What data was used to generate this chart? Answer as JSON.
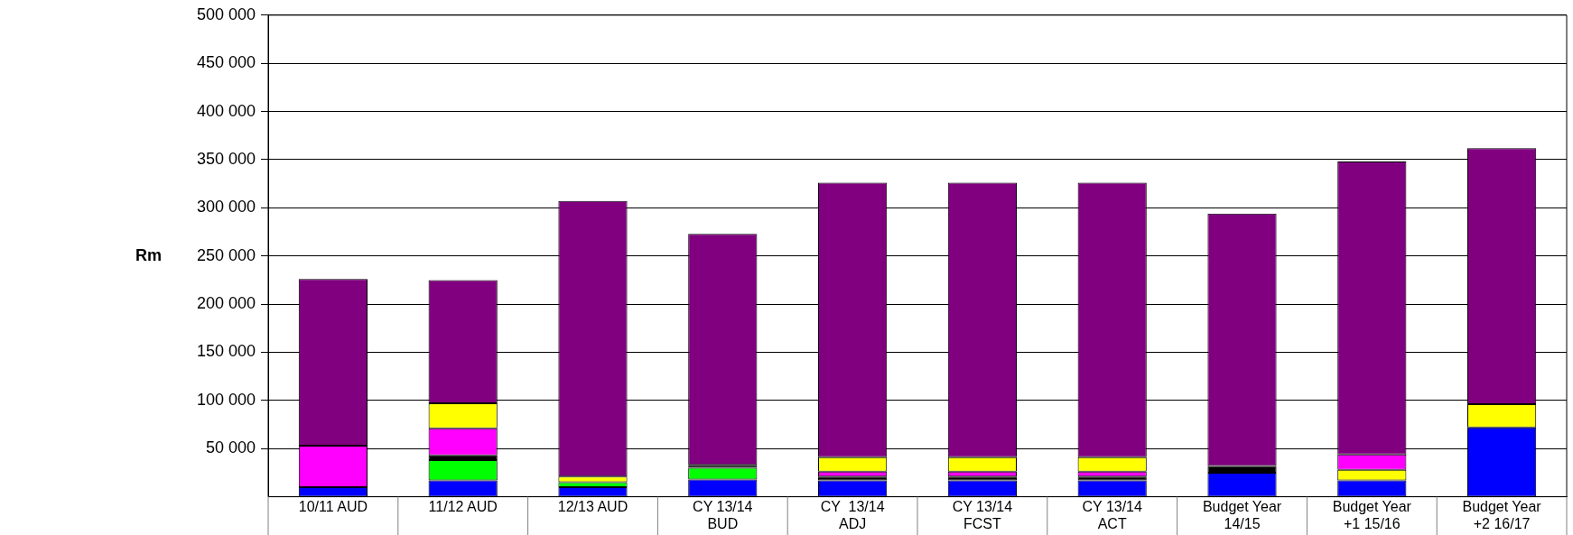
{
  "chart_data": {
    "type": "bar",
    "stacked": true,
    "ylabel": "Rm",
    "grid": "y",
    "legend": false,
    "categories": [
      "10/11 AUD",
      "11/12 AUD",
      "12/13 AUD",
      "CY 13/14 BUD",
      "CY  13/14 ADJ",
      "CY 13/14 FCST",
      "CY 13/14 ACT",
      "Budget Year 14/15",
      "Budget Year +1 15/16",
      "Budget Year +2 16/17"
    ],
    "ylim": [
      0,
      500000
    ],
    "yticks": [
      {
        "value": 50000,
        "label": "50 000"
      },
      {
        "value": 100000,
        "label": "100 000"
      },
      {
        "value": 150000,
        "label": "150 000"
      },
      {
        "value": 200000,
        "label": "200 000"
      },
      {
        "value": 250000,
        "label": "250 000"
      },
      {
        "value": 300000,
        "label": "300 000"
      },
      {
        "value": 350000,
        "label": "350 000"
      },
      {
        "value": 400000,
        "label": "400 000"
      },
      {
        "value": 450000,
        "label": "450 000"
      },
      {
        "value": 500000,
        "label": "500 000"
      }
    ],
    "series": [
      {
        "color": "#0000ff",
        "values": [
          10000,
          17000,
          10000,
          18000,
          17000,
          17000,
          17000,
          25000,
          17000,
          72000
        ]
      },
      {
        "color": "#00ff00",
        "values": [
          null,
          21000,
          5000,
          12000,
          null,
          null,
          null,
          null,
          null,
          null
        ]
      },
      {
        "color": "#000000",
        "values": [
          null,
          5000,
          null,
          3000,
          4000,
          4000,
          4000,
          7000,
          null,
          null
        ]
      },
      {
        "color": "#ffff00",
        "values": [
          null,
          null,
          null,
          null,
          null,
          null,
          null,
          null,
          11000,
          null
        ]
      },
      {
        "color": "#ff00ff",
        "values": [
          43000,
          28000,
          null,
          null,
          5000,
          5000,
          5000,
          null,
          16000,
          null
        ]
      },
      {
        "color": "#ffff00",
        "values": [
          null,
          26000,
          6000,
          null,
          15000,
          15000,
          15000,
          null,
          null,
          24000
        ]
      },
      {
        "color": "#800080",
        "values": [
          173000,
          128000,
          286000,
          240000,
          285000,
          285000,
          285000,
          262000,
          304000,
          266000
        ]
      }
    ]
  }
}
